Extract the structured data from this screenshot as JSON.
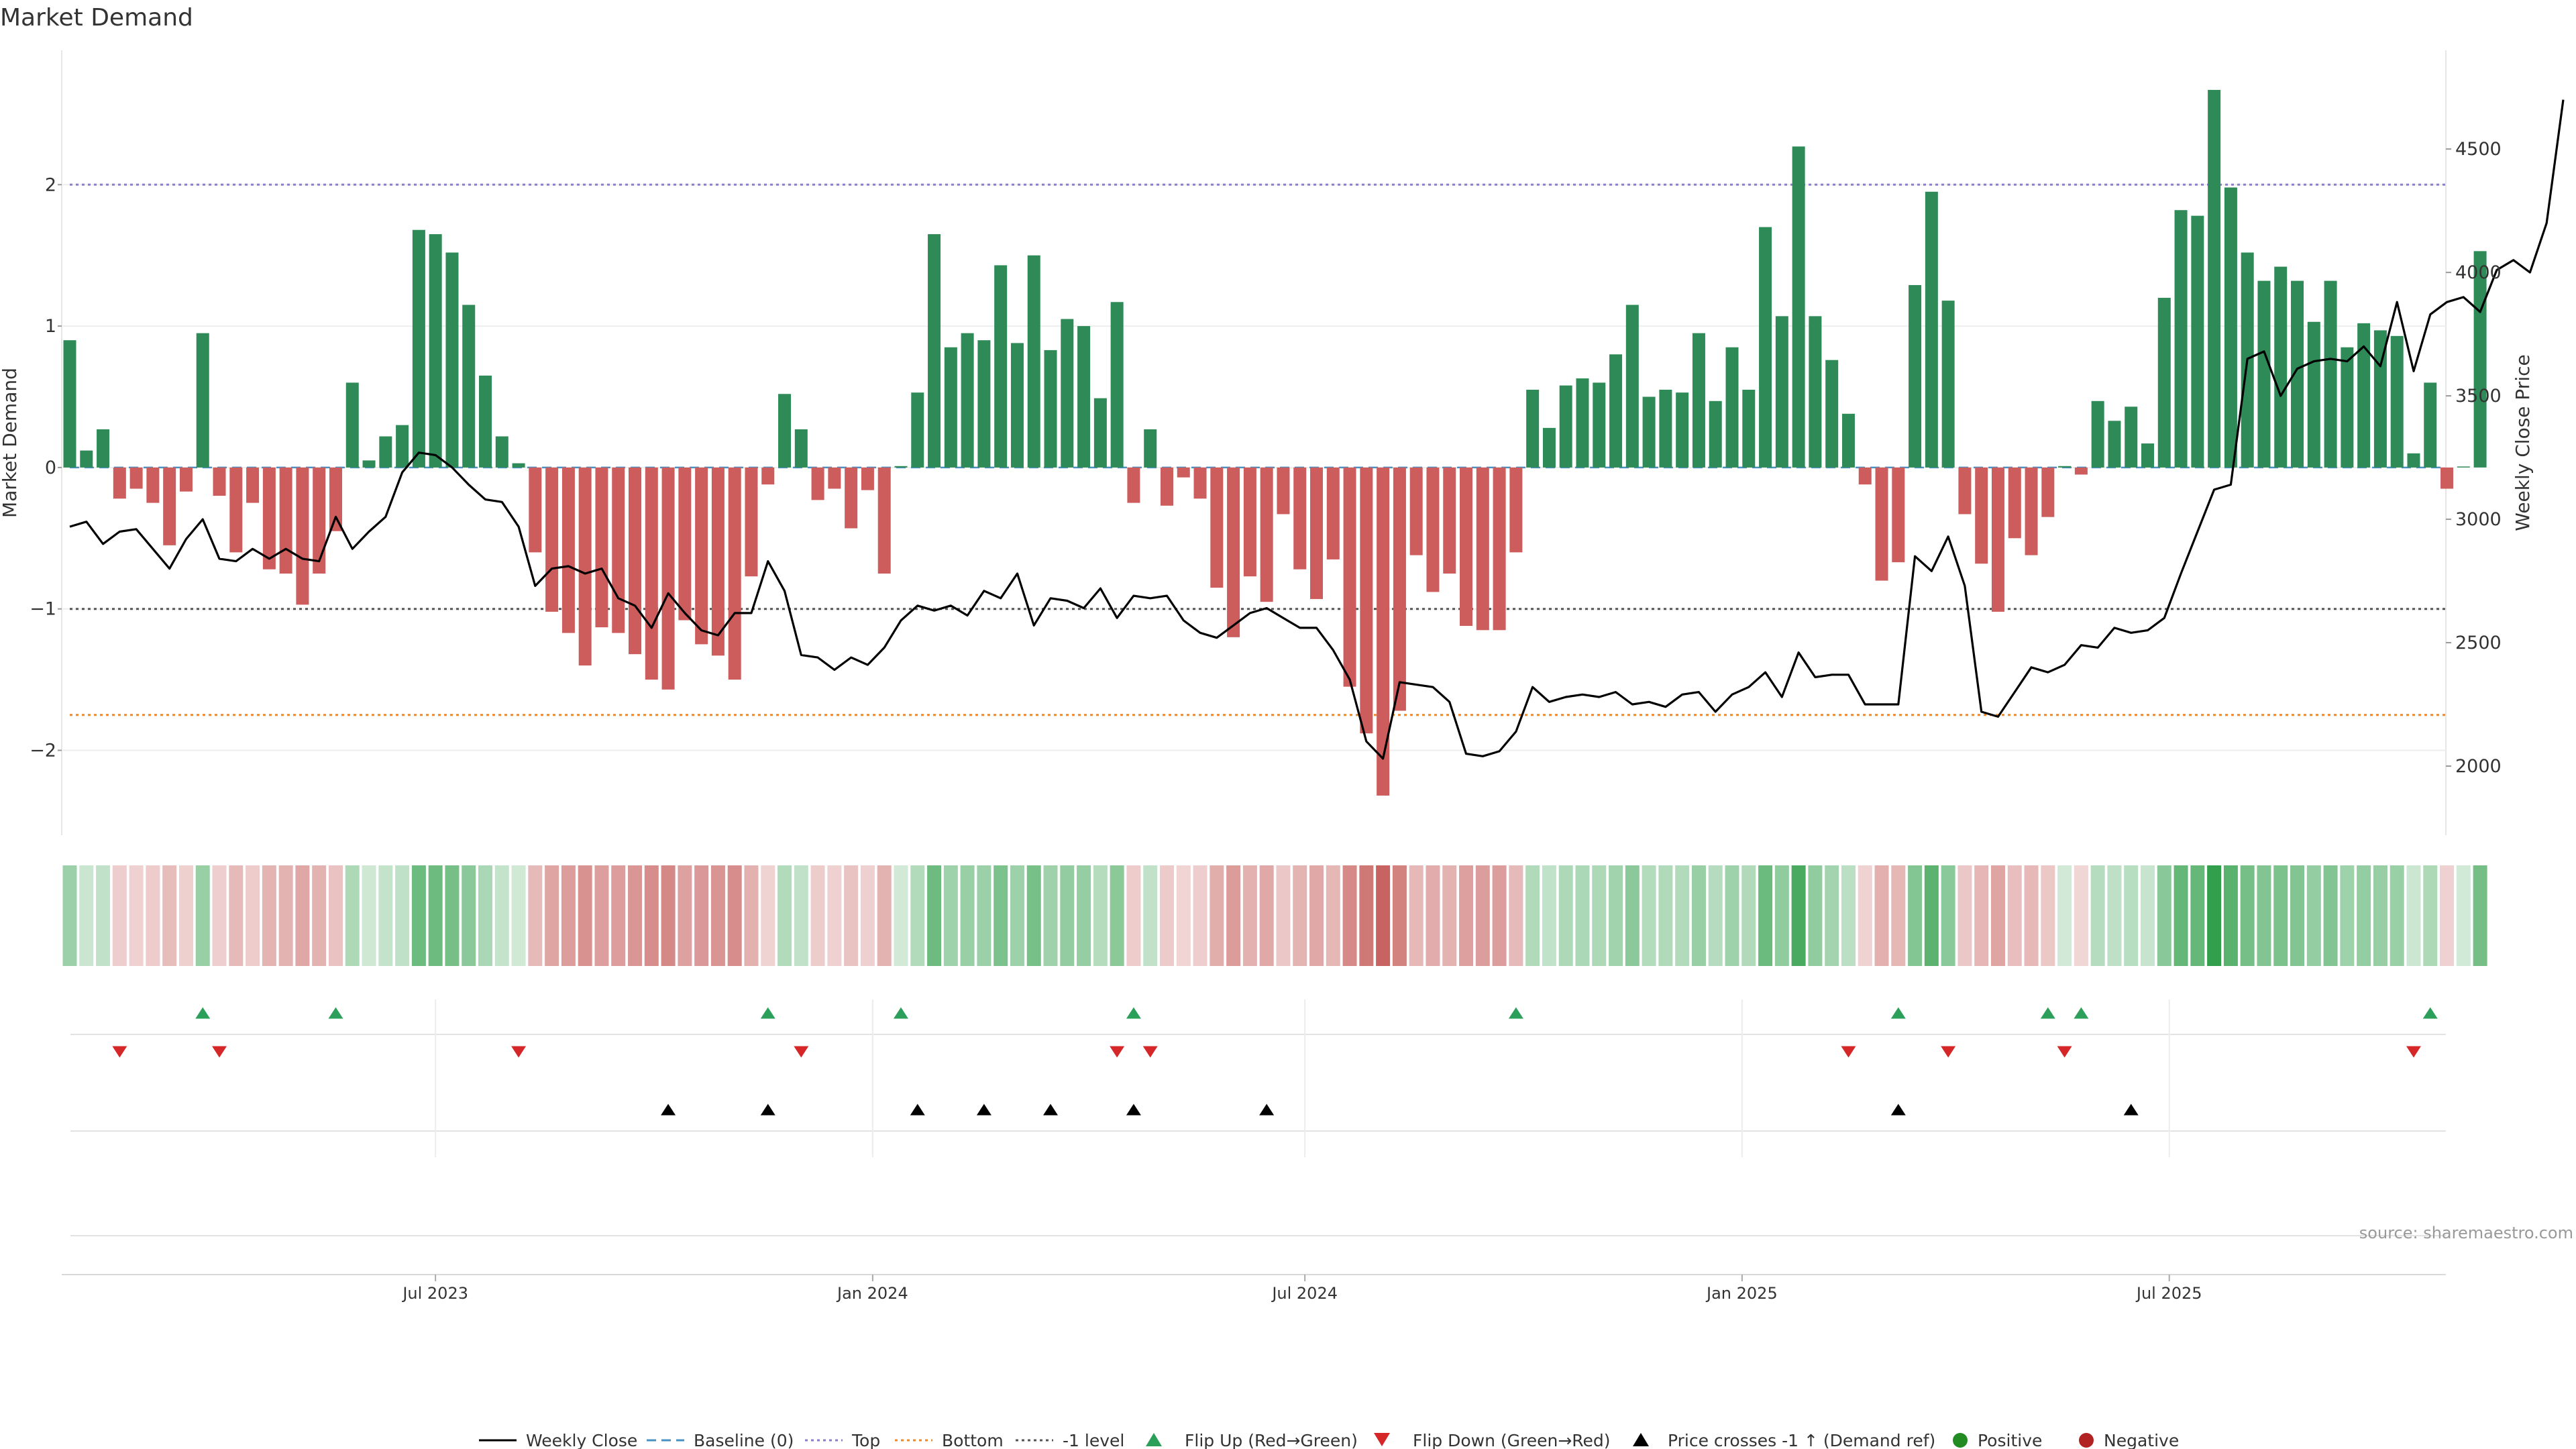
{
  "chart_data": {
    "type": "bar",
    "title": "Market Demand",
    "y_left_label": "Market Demand",
    "y_right_label": "Weekly Close Price",
    "y_left_ticks": [
      "2",
      "1",
      "0",
      "−1",
      "−2"
    ],
    "y_left_tick_values": [
      2,
      1,
      0,
      -1,
      -2
    ],
    "y_left_range": [
      -2.6,
      2.95
    ],
    "y_right_ticks": [
      "4500",
      "4000",
      "3500",
      "3000",
      "2500",
      "2000"
    ],
    "y_right_tick_values": [
      4500,
      4000,
      3500,
      3000,
      2500,
      2000
    ],
    "y_right_range": [
      1720,
      4900
    ],
    "x_ticks": [
      "Jul 2023",
      "Jan 2024",
      "Jul 2024",
      "Jan 2025",
      "Jul 2025"
    ],
    "x_tick_weeks": [
      22,
      48.3,
      74.3,
      100.6,
      126.3
    ],
    "reference_lines": [
      {
        "name": "Top",
        "value": 2.0,
        "color": "#8a7fc9",
        "dash": "dotted"
      },
      {
        "name": "-1 level",
        "value": -1.0,
        "color": "#555555",
        "dash": "dotted"
      },
      {
        "name": "Bottom",
        "value": -1.75,
        "color": "#ee8a2c",
        "dash": "dotted"
      },
      {
        "name": "Baseline (0)",
        "value": 0,
        "color": "#4a90c2",
        "dash": "dashed"
      }
    ],
    "demand": [
      0.9,
      0.12,
      0.27,
      -0.22,
      -0.15,
      -0.25,
      -0.55,
      -0.17,
      0.95,
      -0.2,
      -0.6,
      -0.25,
      -0.72,
      -0.75,
      -0.97,
      -0.75,
      -0.45,
      0.6,
      0.05,
      0.22,
      0.3,
      1.68,
      1.65,
      1.52,
      1.15,
      0.65,
      0.22,
      0.03,
      -0.6,
      -1.02,
      -1.17,
      -1.4,
      -1.13,
      -1.17,
      -1.32,
      -1.5,
      -1.57,
      -1.08,
      -1.25,
      -1.33,
      -1.5,
      -0.77,
      -0.12,
      0.52,
      0.27,
      -0.23,
      -0.15,
      -0.43,
      -0.16,
      -0.75,
      0.01,
      0.53,
      1.65,
      0.85,
      0.95,
      0.9,
      1.43,
      0.88,
      1.5,
      0.83,
      1.05,
      1.0,
      0.49,
      1.17,
      -0.25,
      0.27,
      -0.27,
      -0.07,
      -0.22,
      -0.85,
      -1.2,
      -0.77,
      -0.95,
      -0.33,
      -0.72,
      -0.93,
      -0.65,
      -1.55,
      -1.88,
      -2.32,
      -1.72,
      -0.62,
      -0.88,
      -0.75,
      -1.12,
      -1.15,
      -1.15,
      -0.6,
      0.55,
      0.28,
      0.58,
      0.63,
      0.6,
      0.8,
      1.15,
      0.5,
      0.55,
      0.53,
      0.95,
      0.47,
      0.85,
      0.55,
      1.7,
      1.07,
      2.27,
      1.07,
      0.76,
      0.38,
      -0.12,
      -0.8,
      -0.67,
      1.29,
      1.95,
      1.18,
      -0.33,
      -0.68,
      -1.02,
      -0.5,
      -0.62,
      -0.35,
      0.01,
      -0.05,
      0.47,
      0.33,
      0.43,
      0.17,
      1.2,
      1.82,
      1.78,
      2.67,
      1.98,
      1.52,
      1.32,
      1.42,
      1.32,
      1.03,
      1.32,
      0.85,
      1.02,
      0.97,
      0.93,
      0.1,
      0.6,
      -0.15,
      0.0,
      1.53
    ],
    "weekly_close": [
      2970,
      2990,
      2900,
      2950,
      2960,
      2880,
      2800,
      2920,
      3000,
      2840,
      2830,
      2880,
      2840,
      2880,
      2840,
      2830,
      3010,
      2880,
      2950,
      3010,
      3190,
      3270,
      3260,
      3210,
      3140,
      3080,
      3070,
      2970,
      2730,
      2800,
      2810,
      2780,
      2800,
      2680,
      2650,
      2560,
      2700,
      2620,
      2550,
      2530,
      2620,
      2620,
      2830,
      2710,
      2450,
      2440,
      2390,
      2440,
      2410,
      2480,
      2590,
      2650,
      2630,
      2650,
      2610,
      2710,
      2680,
      2780,
      2570,
      2680,
      2670,
      2640,
      2720,
      2600,
      2690,
      2680,
      2690,
      2590,
      2540,
      2520,
      2570,
      2620,
      2640,
      2600,
      2560,
      2560,
      2470,
      2350,
      2100,
      2030,
      2340,
      2330,
      2320,
      2260,
      2050,
      2040,
      2060,
      2140,
      2320,
      2260,
      2280,
      2290,
      2280,
      2300,
      2250,
      2260,
      2240,
      2290,
      2300,
      2220,
      2290,
      2320,
      2380,
      2280,
      2460,
      2360,
      2370,
      2370,
      2250,
      2250,
      2250,
      2850,
      2790,
      2930,
      2730,
      2220,
      2200,
      2300,
      2400,
      2380,
      2410,
      2490,
      2480,
      2560,
      2540,
      2550,
      2600,
      2780,
      2950,
      3120,
      3140,
      3650,
      3680,
      3500,
      3610,
      3640,
      3650,
      3640,
      3700,
      3620,
      3880,
      3600,
      3830,
      3880,
      3900,
      3840,
      4010,
      4050,
      4000,
      4200,
      4700
    ],
    "flip_up_weeks": [
      8,
      16,
      42,
      50,
      64,
      87,
      110,
      119,
      121,
      142
    ],
    "flip_down_weeks": [
      3,
      9,
      27,
      44,
      63,
      65,
      107,
      113,
      120,
      141
    ],
    "price_cross_weeks": [
      36,
      42,
      51,
      55,
      59,
      64,
      72,
      110,
      124
    ]
  },
  "legend": {
    "weekly_close": "Weekly Close",
    "baseline": "Baseline (0)",
    "top": "Top",
    "bottom": "Bottom",
    "minus1": "-1 level",
    "flip_up": "Flip Up (Red→Green)",
    "flip_down": "Flip Down (Green→Red)",
    "price_cross": "Price crosses -1 ↑ (Demand ref)",
    "positive": "Positive",
    "negative": "Negative"
  },
  "colors": {
    "positive_bar": "#2e8b57",
    "negative_bar": "#cd5c5c",
    "price_line": "#000000",
    "flip_up": "#2ca05a",
    "flip_down": "#d62728",
    "price_cross": "#000000",
    "positive_dot": "#228b22",
    "negative_dot": "#b22222"
  },
  "source": "source: sharemaestro.com"
}
